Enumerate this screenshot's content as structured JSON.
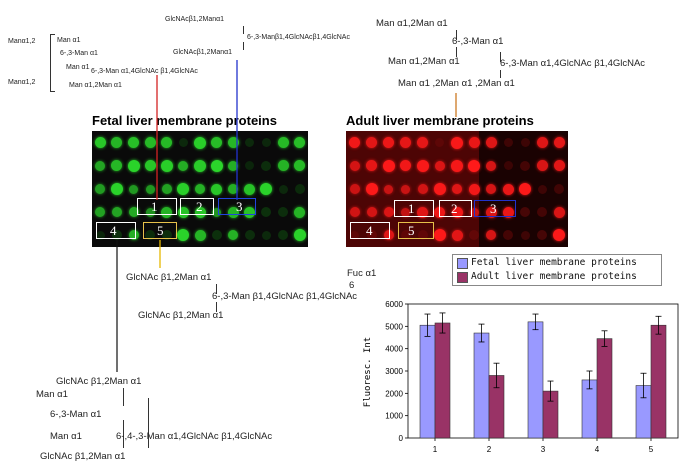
{
  "glycan_top_left": {
    "bracket_top_label": "Manα1,2",
    "bracket_bottom_label": "Manα1,2",
    "lines": [
      "Man α1",
      "6-,3-Man α1",
      "Man α1",
      "6-,3-Man α1,4GlcNAc β1,4GlcNAc",
      "Man α1,2Man α1"
    ]
  },
  "glycan_top_center": {
    "lines": [
      "GlcNAcβ1,2Manα1",
      "6-,3-Manβ1,4GlcNAcβ1,4GlcNAc",
      "GlcNAcβ1,2Manα1"
    ]
  },
  "glycan_top_right": {
    "lines": [
      "Man α1,2Man α1",
      "6-,3-Man α1",
      "Man α1,2Man α1",
      "6-,3-Man α1,4GlcNAc β1,4GlcNAc",
      "Man α1 ,2Man α1 ,2Man α1"
    ]
  },
  "glycan_mid": {
    "lines": [
      "GlcNAc β1,2Man α1",
      "6-,3-Man β1,4GlcNAc β1,4GlcNAc",
      "GlcNAc β1,2Man α1"
    ],
    "fuc": "Fuc α1",
    "fuc_pos": "6"
  },
  "glycan_bottom": {
    "lines": [
      "GlcNAc β1,2Man α1",
      "Man α1",
      "6-,3-Man α1",
      "Man α1",
      "6-,4-,3-Man α1,4GlcNAc β1,4GlcNAc",
      "GlcNAc β1,2Man α1"
    ]
  },
  "panels": {
    "fetal_title": "Fetal liver membrane proteins",
    "adult_title": "Adult liver membrane proteins",
    "fetal_boxes": [
      "1",
      "2",
      "3",
      "4",
      "5"
    ],
    "adult_boxes": [
      "1",
      "2",
      "3",
      "4",
      "5"
    ],
    "fetal_color": "#2bd62b",
    "adult_color": "#ff1a1a"
  },
  "chart_data": {
    "type": "bar",
    "categories": [
      "1",
      "2",
      "3",
      "4",
      "5"
    ],
    "series": [
      {
        "name": "Fetal liver membrane proteins",
        "values": [
          5050,
          4700,
          5200,
          2600,
          2350
        ],
        "errors": [
          500,
          400,
          350,
          400,
          550
        ],
        "color": "#9999ff"
      },
      {
        "name": "Adult liver membrane proteins",
        "values": [
          5150,
          2800,
          2100,
          4450,
          5050
        ],
        "errors": [
          450,
          550,
          450,
          350,
          400
        ],
        "color": "#993366"
      }
    ],
    "ylabel": "Fluoresc. Int",
    "ylim": [
      0,
      6000
    ],
    "yticks": [
      0,
      1000,
      2000,
      3000,
      4000,
      5000,
      6000
    ],
    "legend": "top-left, above plot",
    "grid": false
  }
}
